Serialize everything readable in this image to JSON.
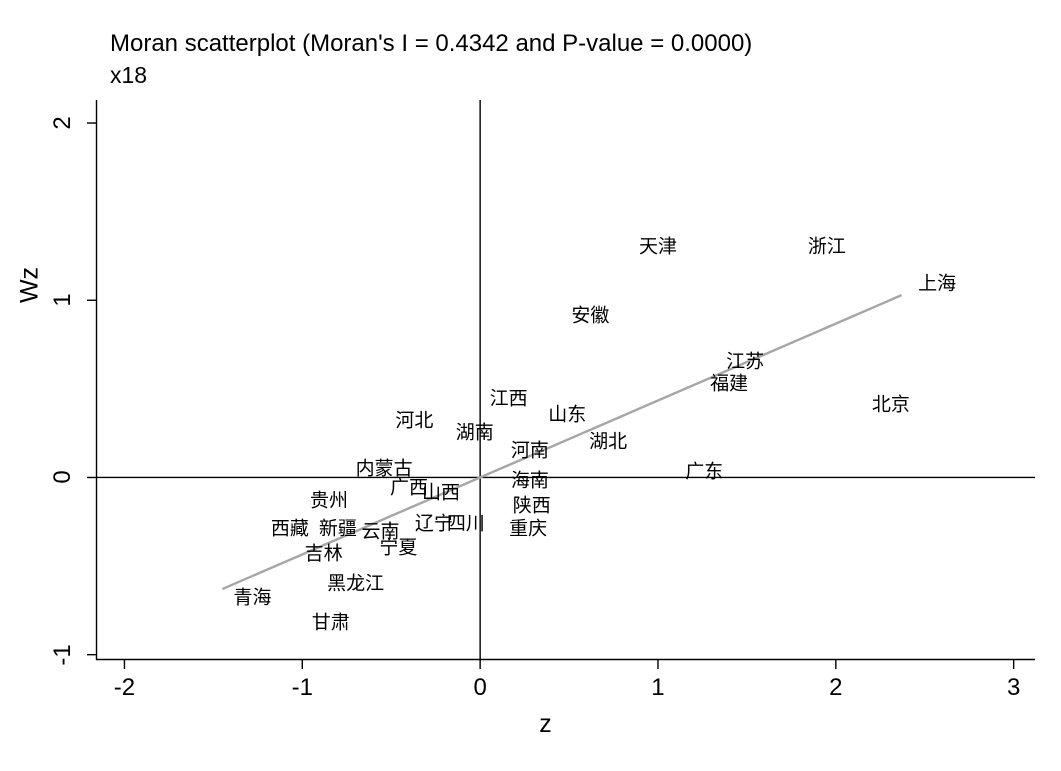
{
  "title": "Moran scatterplot (Moran's I = 0.4342 and P-value = 0.0000)",
  "subtitle": "x18",
  "chart_data": {
    "type": "scatter",
    "title": "Moran scatterplot (Moran's I = 0.4342 and P-value = 0.0000)",
    "subtitle": "x18",
    "xlabel": "z",
    "ylabel": "Wz",
    "xlim": [
      -2.16,
      3.12
    ],
    "ylim": [
      -1.03,
      2.13
    ],
    "xticks": [
      -2,
      -1,
      0,
      1,
      2,
      3
    ],
    "yticks": [
      -1,
      0,
      1,
      2
    ],
    "grid": false,
    "moran_i": 0.4342,
    "p_value": "0.0000",
    "reference_lines": {
      "x_zero": 0,
      "y_zero": 0,
      "color": "#000000"
    },
    "regression_line": {
      "slope": 0.4342,
      "intercept": 0,
      "x_start": -1.45,
      "x_end": 2.37,
      "color": "#a6a6a6"
    },
    "points": [
      {
        "label": "青海",
        "z": -1.28,
        "wz": -0.68
      },
      {
        "label": "甘肃",
        "z": -0.84,
        "wz": -0.82
      },
      {
        "label": "黑龙江",
        "z": -0.7,
        "wz": -0.6
      },
      {
        "label": "吉林",
        "z": -0.88,
        "wz": -0.43
      },
      {
        "label": "宁夏",
        "z": -0.46,
        "wz": -0.4
      },
      {
        "label": "西藏",
        "z": -1.07,
        "wz": -0.29
      },
      {
        "label": "新疆",
        "z": -0.8,
        "wz": -0.29
      },
      {
        "label": "云南",
        "z": -0.56,
        "wz": -0.31
      },
      {
        "label": "辽宁",
        "z": -0.26,
        "wz": -0.26
      },
      {
        "label": "四川",
        "z": -0.08,
        "wz": -0.26
      },
      {
        "label": "重庆",
        "z": 0.27,
        "wz": -0.29
      },
      {
        "label": "贵州",
        "z": -0.85,
        "wz": -0.13
      },
      {
        "label": "陕西",
        "z": 0.29,
        "wz": -0.16
      },
      {
        "label": "广西",
        "z": -0.4,
        "wz": -0.06
      },
      {
        "label": "山西",
        "z": -0.22,
        "wz": -0.09
      },
      {
        "label": "内蒙古",
        "z": -0.54,
        "wz": 0.05
      },
      {
        "label": "海南",
        "z": 0.28,
        "wz": -0.02
      },
      {
        "label": "广东",
        "z": 1.26,
        "wz": 0.03
      },
      {
        "label": "河南",
        "z": 0.28,
        "wz": 0.15
      },
      {
        "label": "湖北",
        "z": 0.72,
        "wz": 0.2
      },
      {
        "label": "湖南",
        "z": -0.03,
        "wz": 0.25
      },
      {
        "label": "河北",
        "z": -0.37,
        "wz": 0.32
      },
      {
        "label": "山东",
        "z": 0.49,
        "wz": 0.35
      },
      {
        "label": "江西",
        "z": 0.16,
        "wz": 0.44
      },
      {
        "label": "北京",
        "z": 2.31,
        "wz": 0.41
      },
      {
        "label": "福建",
        "z": 1.4,
        "wz": 0.53
      },
      {
        "label": "江苏",
        "z": 1.49,
        "wz": 0.65
      },
      {
        "label": "安徽",
        "z": 0.62,
        "wz": 0.91
      },
      {
        "label": "上海",
        "z": 2.57,
        "wz": 1.09
      },
      {
        "label": "天津",
        "z": 1.0,
        "wz": 1.3
      },
      {
        "label": "浙江",
        "z": 1.95,
        "wz": 1.3
      }
    ]
  }
}
